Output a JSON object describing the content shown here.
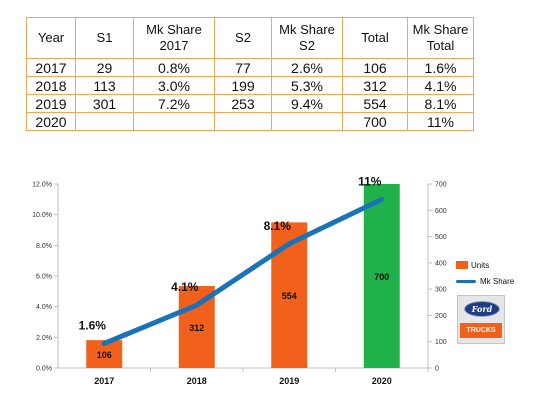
{
  "table": {
    "headers": [
      "Year",
      "S1",
      "Mk Share\n2017",
      "S2",
      "Mk Share\nS2",
      "Total",
      "Mk Share\nTotal"
    ],
    "rows": [
      [
        "2017",
        "29",
        "0.8%",
        "77",
        "2.6%",
        "106",
        "1.6%"
      ],
      [
        "2018",
        "113",
        "3.0%",
        "199",
        "5.3%",
        "312",
        "4.1%"
      ],
      [
        "2019",
        "301",
        "7.2%",
        "253",
        "9.4%",
        "554",
        "8.1%"
      ],
      [
        "2020",
        "",
        "",
        "",
        "",
        "700",
        "11%"
      ]
    ]
  },
  "chart_data": {
    "type": "bar",
    "categories": [
      "2017",
      "2018",
      "2019",
      "2020"
    ],
    "series": [
      {
        "name": "Units",
        "kind": "bar",
        "axis": "right",
        "values": [
          106,
          312,
          554,
          700
        ],
        "colors": [
          "#f1611b",
          "#f1611b",
          "#f1611b",
          "#20b14a"
        ],
        "value_labels": [
          "106",
          "312",
          "554",
          "700"
        ]
      },
      {
        "name": "Mk Share",
        "kind": "line",
        "axis": "left",
        "values": [
          1.6,
          4.1,
          8.1,
          11.0
        ],
        "color": "#1a72b8",
        "value_labels": [
          "1.6%",
          "4.1%",
          "8.1%",
          "11%"
        ]
      }
    ],
    "y_left": {
      "min": 0,
      "max": 12,
      "ticks": [
        "0.0%",
        "2.0%",
        "4.0%",
        "6.0%",
        "8.0%",
        "10.0%",
        "12.0%"
      ]
    },
    "y_right": {
      "min": 0,
      "max": 700,
      "ticks": [
        "0",
        "100",
        "200",
        "300",
        "400",
        "500",
        "600",
        "700"
      ]
    },
    "grid": false,
    "legend_position": "right"
  },
  "legend": {
    "units_label": "Units",
    "line_label": "Mk Share"
  },
  "brand": {
    "logo_text": "Ford",
    "banner_text": "TRUCKS"
  }
}
